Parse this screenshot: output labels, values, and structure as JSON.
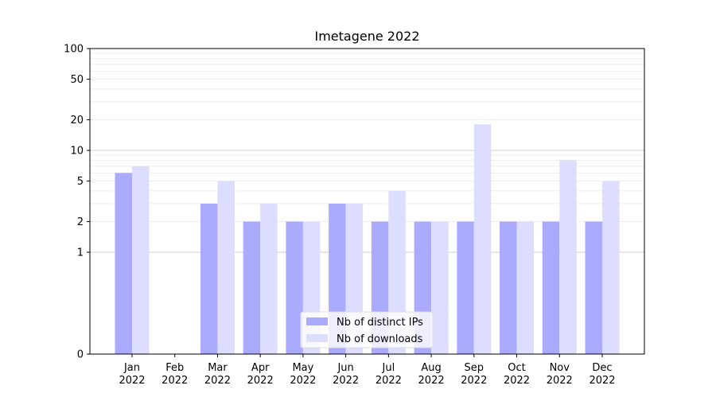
{
  "chart_data": {
    "type": "bar",
    "title": "Imetagene 2022",
    "xlabel": "",
    "ylabel": "",
    "y_scale": "symlog",
    "ylim": [
      0,
      100
    ],
    "y_ticks": [
      0,
      1,
      2,
      5,
      10,
      20,
      50,
      100
    ],
    "y_tick_labels": [
      "0",
      "1",
      "2",
      "5",
      "10",
      "20",
      "50",
      "100"
    ],
    "categories": [
      "Jan\n2022",
      "Feb\n2022",
      "Mar\n2022",
      "Apr\n2022",
      "May\n2022",
      "Jun\n2022",
      "Jul\n2022",
      "Aug\n2022",
      "Sep\n2022",
      "Oct\n2022",
      "Nov\n2022",
      "Dec\n2022"
    ],
    "category_lines": [
      [
        "Jan",
        "2022"
      ],
      [
        "Feb",
        "2022"
      ],
      [
        "Mar",
        "2022"
      ],
      [
        "Apr",
        "2022"
      ],
      [
        "May",
        "2022"
      ],
      [
        "Jun",
        "2022"
      ],
      [
        "Jul",
        "2022"
      ],
      [
        "Aug",
        "2022"
      ],
      [
        "Sep",
        "2022"
      ],
      [
        "Oct",
        "2022"
      ],
      [
        "Nov",
        "2022"
      ],
      [
        "Dec",
        "2022"
      ]
    ],
    "series": [
      {
        "name": "Nb of distinct IPs",
        "color": "#aaaaff",
        "values": [
          6,
          0,
          3,
          2,
          2,
          3,
          2,
          2,
          2,
          2,
          2,
          2
        ]
      },
      {
        "name": "Nb of downloads",
        "color": "#ddddff",
        "values": [
          7,
          0,
          5,
          3,
          2,
          3,
          4,
          2,
          18,
          2,
          8,
          5
        ]
      }
    ],
    "legend_position": "bottom-center",
    "grid": "horizontal"
  }
}
